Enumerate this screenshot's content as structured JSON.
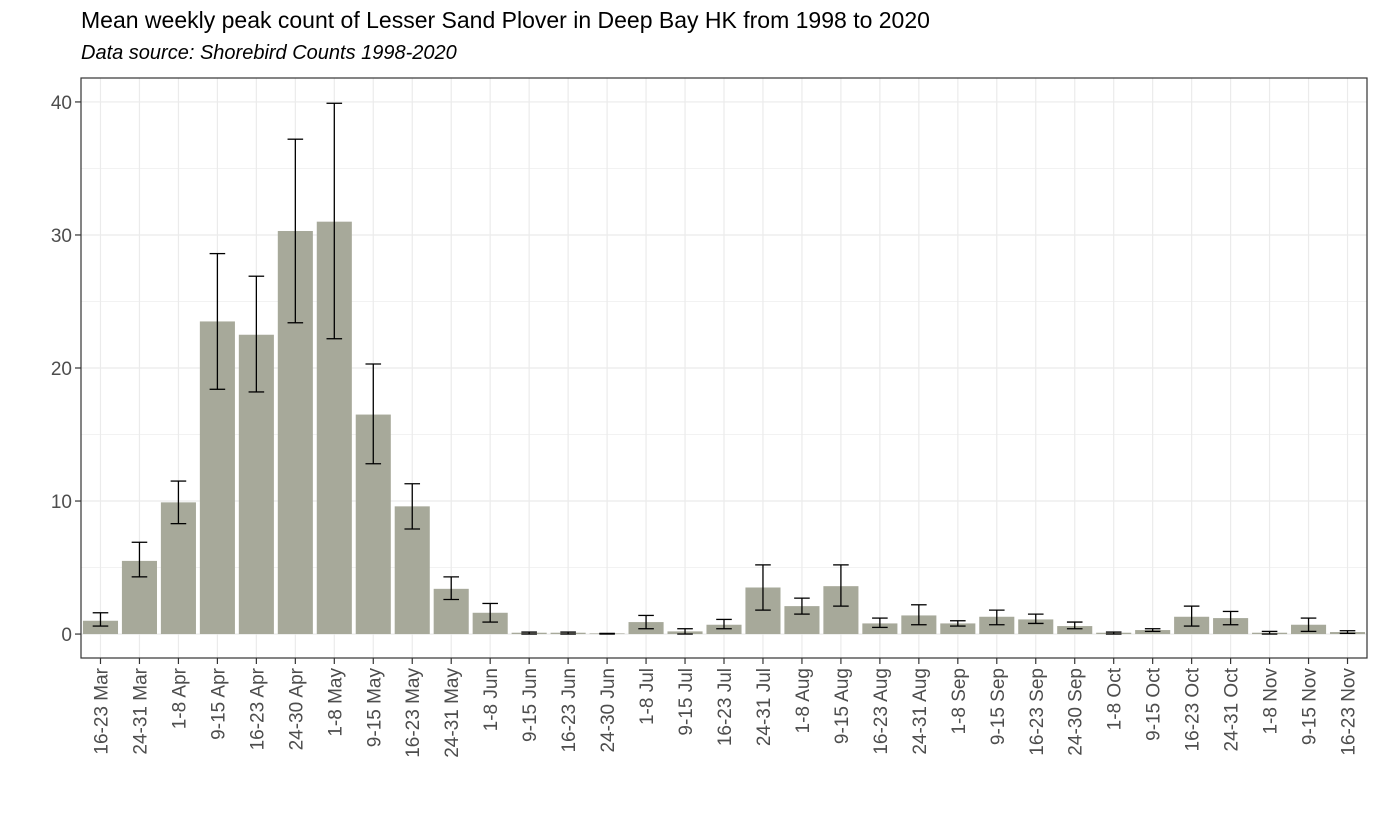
{
  "chart_data": {
    "type": "bar",
    "title": "Mean weekly peak count of Lesser Sand Plover in Deep Bay HK from 1998 to 2020",
    "subtitle": "Data source: Shorebird Counts 1998-2020",
    "xlabel": "",
    "ylabel": "",
    "ylim": [
      -1.8,
      41.8
    ],
    "yticks": [
      0,
      10,
      20,
      30,
      40
    ],
    "grid": true,
    "bar_color": "#a7a99a",
    "categories": [
      "16-23 Mar",
      "24-31 Mar",
      "1-8 Apr",
      "9-15 Apr",
      "16-23 Apr",
      "24-30 Apr",
      "1-8 May",
      "9-15 May",
      "16-23 May",
      "24-31 May",
      "1-8 Jun",
      "9-15 Jun",
      "16-23 Jun",
      "24-30 Jun",
      "1-8 Jul",
      "9-15 Jul",
      "16-23 Jul",
      "24-31 Jul",
      "1-8 Aug",
      "9-15 Aug",
      "16-23 Aug",
      "24-31 Aug",
      "1-8 Sep",
      "9-15 Sep",
      "16-23 Sep",
      "24-30 Sep",
      "1-8 Oct",
      "9-15 Oct",
      "16-23 Oct",
      "24-31 Oct",
      "1-8 Nov",
      "9-15 Nov",
      "16-23 Nov"
    ],
    "values": [
      1.0,
      5.5,
      9.9,
      23.5,
      22.5,
      30.3,
      31.0,
      16.5,
      9.6,
      3.4,
      1.6,
      0.1,
      0.1,
      0.05,
      0.9,
      0.2,
      0.7,
      3.5,
      2.1,
      3.6,
      0.8,
      1.4,
      0.8,
      1.3,
      1.1,
      0.6,
      0.1,
      0.3,
      1.3,
      1.2,
      0.1,
      0.7,
      0.15
    ],
    "error_low": [
      0.6,
      4.3,
      8.3,
      18.4,
      18.2,
      23.4,
      22.2,
      12.8,
      7.9,
      2.6,
      0.9,
      0.0,
      0.0,
      0.0,
      0.4,
      0.0,
      0.4,
      1.8,
      1.5,
      2.1,
      0.5,
      0.7,
      0.6,
      0.7,
      0.8,
      0.4,
      0.0,
      0.2,
      0.6,
      0.7,
      0.0,
      0.2,
      0.05
    ],
    "error_high": [
      1.6,
      6.9,
      11.5,
      28.6,
      26.9,
      37.2,
      39.9,
      20.3,
      11.3,
      4.3,
      2.3,
      0.15,
      0.15,
      0.05,
      1.4,
      0.4,
      1.1,
      5.2,
      2.7,
      5.2,
      1.2,
      2.2,
      1.0,
      1.8,
      1.5,
      0.9,
      0.15,
      0.4,
      2.1,
      1.7,
      0.2,
      1.2,
      0.25
    ]
  }
}
